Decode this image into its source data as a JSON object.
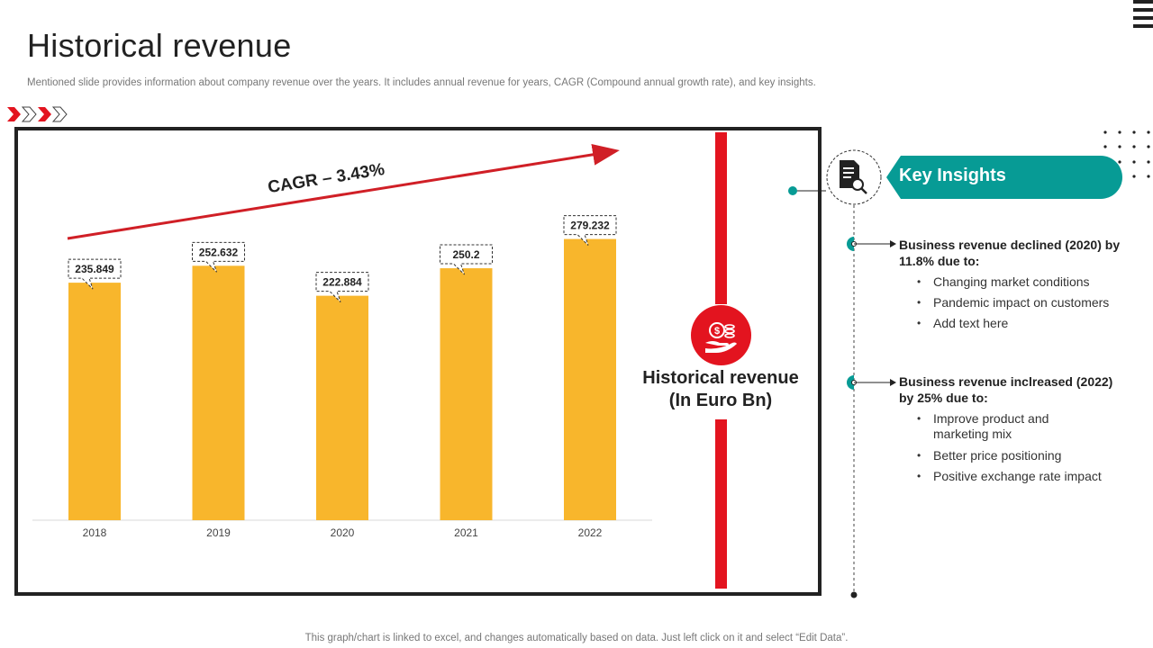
{
  "page": {
    "title": "Historical revenue",
    "subtitle": "Mentioned slide provides information about company revenue over the years. It includes annual revenue for years, CAGR (Compound annual growth rate), and key insights.",
    "footer": "This graph/chart is linked to excel, and changes automatically based on data. Just left click on it and select “Edit Data”."
  },
  "chart_data": {
    "type": "bar",
    "categories": [
      "2018",
      "2019",
      "2020",
      "2021",
      "2022"
    ],
    "values": [
      235.849,
      252.632,
      222.884,
      250.2,
      279.232
    ],
    "data_labels": [
      "235.849",
      "252.632",
      "222.884",
      "250.2",
      "279.232"
    ],
    "annotation": "CAGR – 3.43%",
    "center_label_line1": "Historical revenue",
    "center_label_line2": "(In Euro Bn)",
    "ylim": [
      0,
      290
    ],
    "grid": false,
    "bar_color": "#f8b62c"
  },
  "insights": {
    "title": "Key Insights",
    "groups": [
      {
        "heading": "Business revenue declined (2020) by 11.8% due to:",
        "items": [
          "Changing market conditions",
          "Pandemic impact on customers",
          "Add text here"
        ]
      },
      {
        "heading": "Business revenue inclreased (2022) by 25% due to:",
        "items": [
          "Improve product and marketing mix",
          "Better price positioning",
          "Positive exchange rate impact"
        ]
      }
    ]
  },
  "colors": {
    "accent_red": "#e3141f",
    "teal": "#079b95",
    "dark": "#222222"
  },
  "icons": [
    "chevron-right-icon",
    "menu-icon",
    "money-hand-icon",
    "document-search-icon"
  ]
}
